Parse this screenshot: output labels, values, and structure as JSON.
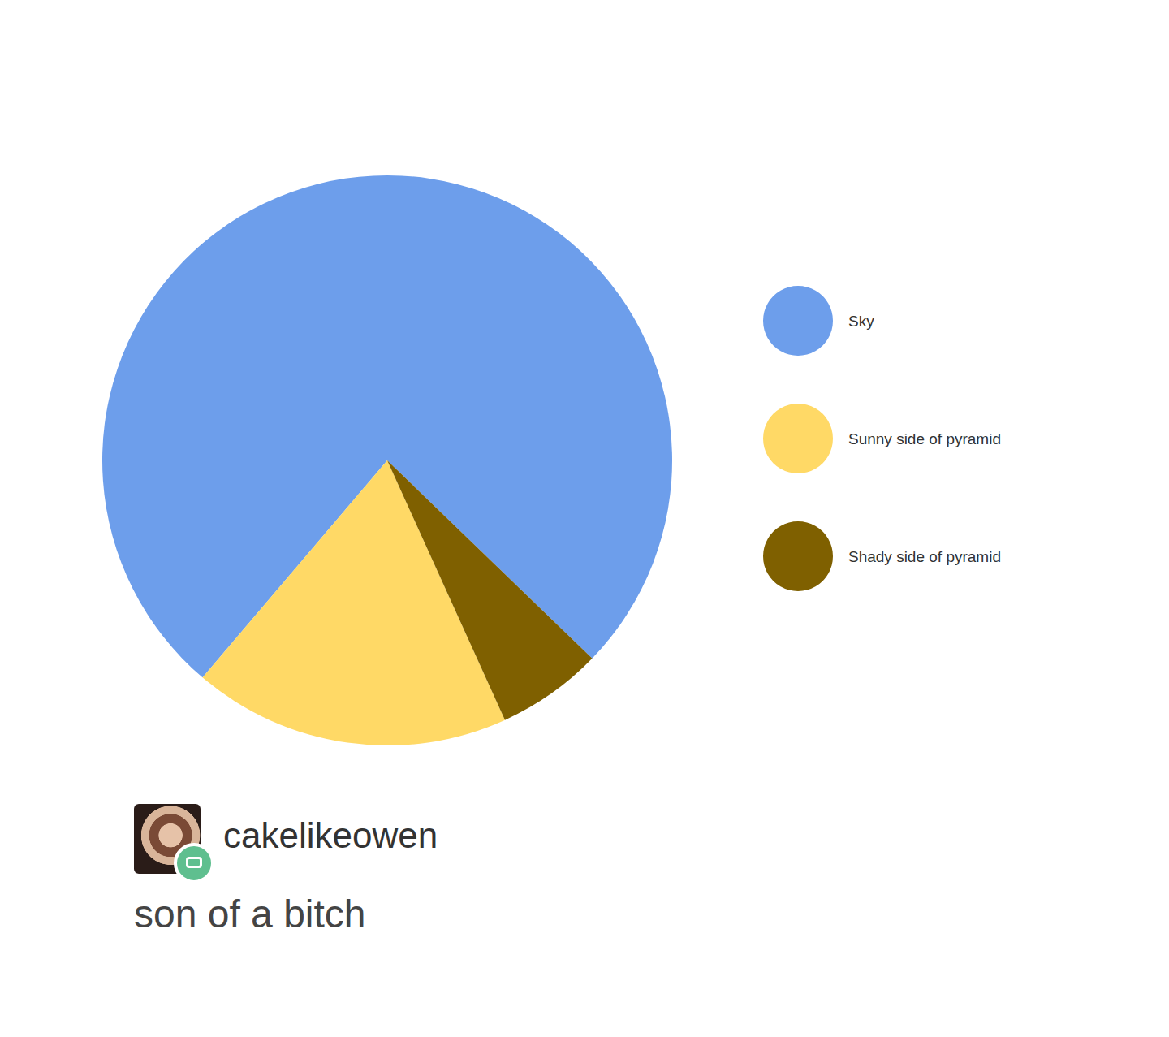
{
  "chart_data": {
    "type": "pie",
    "categories": [
      "Sky",
      "Sunny side of pyramid",
      "Shady side of pyramid"
    ],
    "values": [
      76,
      18,
      6
    ],
    "colors": [
      "#6d9eeb",
      "#ffd966",
      "#7f6000"
    ],
    "legend": "right",
    "data_labels": false
  },
  "post": {
    "username": "cakelikeowen",
    "text": "son of a bitch"
  }
}
